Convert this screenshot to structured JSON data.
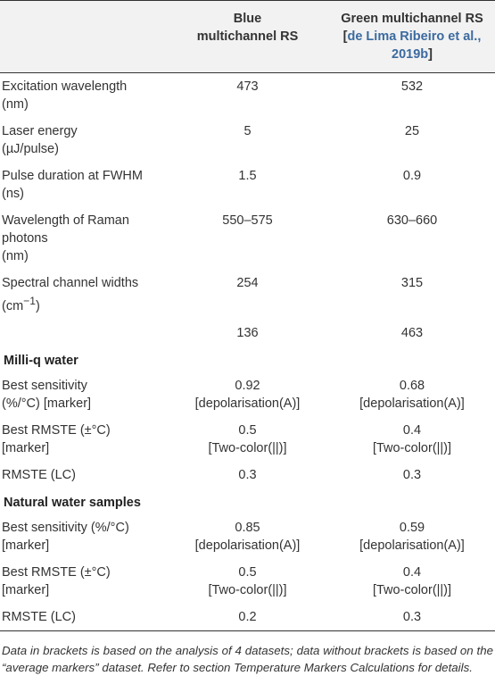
{
  "header": {
    "col1": "",
    "col2_line1": "Blue",
    "col2_line2": "multichannel RS",
    "col3_line1": "Green multichannel RS",
    "col3_ref_open": "[",
    "col3_ref_link1": "de Lima Ribeiro et al.,",
    "col3_ref_link2": "2019b",
    "col3_ref_close": "]"
  },
  "rows": [
    {
      "p1": "Excitation wavelength",
      "p2": "(nm)",
      "b1": "473",
      "b2": "",
      "g1": "532",
      "g2": ""
    },
    {
      "p1": "Laser energy",
      "p2": "(µJ/pulse)",
      "b1": "5",
      "b2": "",
      "g1": "25",
      "g2": ""
    },
    {
      "p1": "Pulse duration at FWHM",
      "p2": "(ns)",
      "b1": "1.5",
      "b2": "",
      "g1": "0.9",
      "g2": ""
    },
    {
      "p1": "Wavelength of Raman photons",
      "p2": "(nm)",
      "b1": "550–575",
      "b2": "",
      "g1": "630–660",
      "g2": ""
    },
    {
      "p1": "Spectral channel widths",
      "p2": "(cm",
      "p2sup": "−1",
      "p2end": ")",
      "b1": "254",
      "b2": "",
      "g1": "315",
      "g2": ""
    },
    {
      "p1": "",
      "p2": "",
      "b1": "136",
      "b2": "",
      "g1": "463",
      "g2": ""
    }
  ],
  "section1": {
    "title": "Milli-q water",
    "rows": [
      {
        "p1": "Best sensitivity",
        "p2": "(%/°C) [marker]",
        "b1": "0.92",
        "b2": "[depolarisation(A)]",
        "g1": "0.68",
        "g2": "[depolarisation(A)]"
      },
      {
        "p1": "Best RMSTE (±°C)",
        "p2": "[marker]",
        "b1": "0.5",
        "b2": "[Two-color(||)]",
        "g1": "0.4",
        "g2": "[Two-color(||)]"
      },
      {
        "p1": "RMSTE (LC)",
        "p2": "",
        "b1": "0.3",
        "b2": "",
        "g1": "0.3",
        "g2": ""
      }
    ]
  },
  "section2": {
    "title": "Natural water samples",
    "rows": [
      {
        "p1": "Best sensitivity (%/°C)",
        "p2": "[marker]",
        "b1": "0.85",
        "b2": "[depolarisation(A)]",
        "g1": "0.59",
        "g2": "[depolarisation(A)]"
      },
      {
        "p1": "Best RMSTE (±°C)",
        "p2": "[marker]",
        "b1": "0.5",
        "b2": "[Two-color(||)]",
        "g1": "0.4",
        "g2": "[Two-color(||)]"
      },
      {
        "p1": "RMSTE (LC)",
        "p2": "",
        "b1": "0.2",
        "b2": "",
        "g1": "0.3",
        "g2": ""
      }
    ]
  },
  "footnote": "Data in brackets is based on the analysis of 4 datasets; data without brackets is based on the “average markers” dataset. Refer to section Temperature Markers Calculations for details.",
  "colors": {
    "text": "#333333",
    "header_bg": "#f2f2f2",
    "link": "#3b6aa0",
    "rule": "#333333"
  }
}
